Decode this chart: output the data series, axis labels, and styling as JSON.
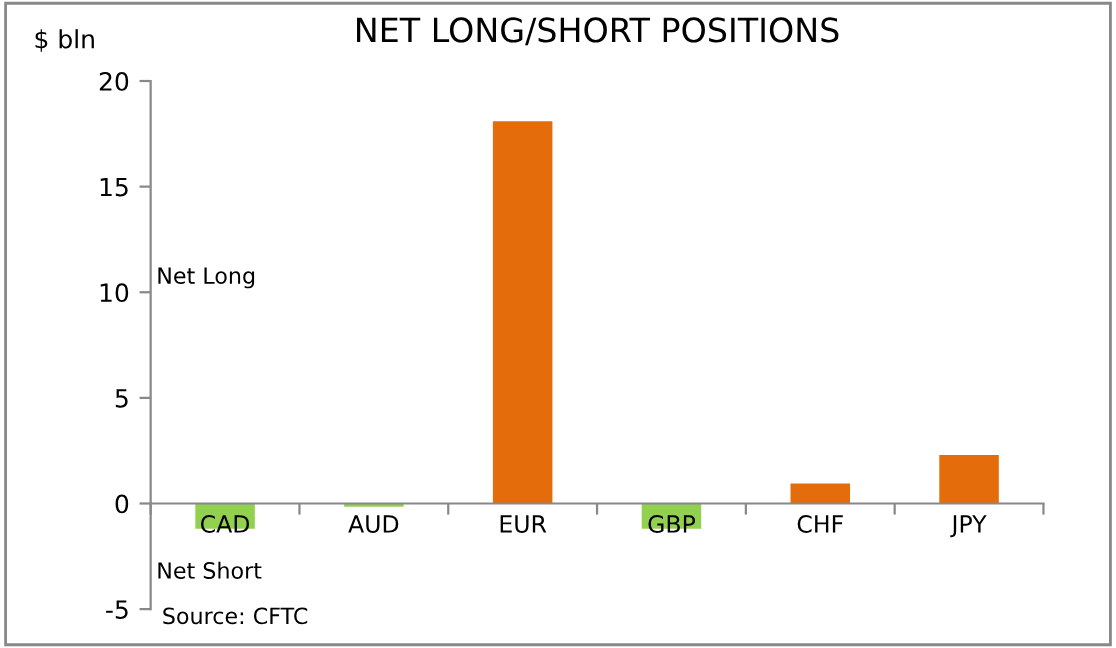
{
  "chart_data": {
    "type": "bar",
    "title": "NET LONG/SHORT POSITIONS",
    "ylabel": "$ bln",
    "categories": [
      "CAD",
      "AUD",
      "EUR",
      "GBP",
      "CHF",
      "JPY"
    ],
    "values": [
      -1.2,
      -0.15,
      18.1,
      -1.2,
      0.95,
      2.3
    ],
    "colors": [
      "#92d050",
      "#92d050",
      "#e46c0a",
      "#92d050",
      "#e46c0a",
      "#e46c0a"
    ],
    "ylim": [
      -5,
      20
    ],
    "yticks": [
      -5,
      0,
      5,
      10,
      15,
      20
    ],
    "grid": false,
    "legend": false,
    "annotations": [
      "Net Long",
      "Net Short",
      "Source: CFTC"
    ]
  }
}
